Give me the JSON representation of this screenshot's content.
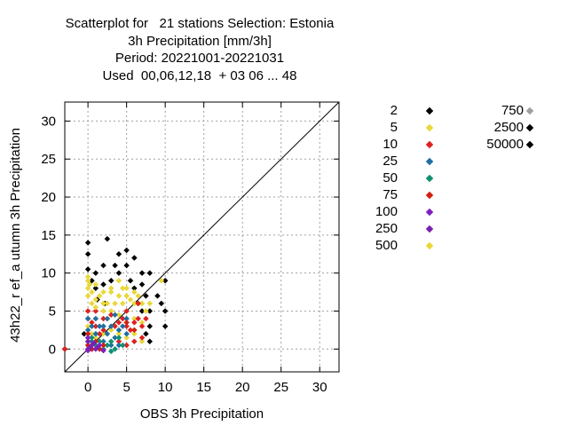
{
  "chart_data": {
    "type": "scatter",
    "title_lines": [
      "Scatterplot for   21 stations Selection: Estonia",
      "3h Precipitation [mm/3h]",
      "Period: 20221001-20221031",
      "Used  00,06,12,18  + 03 06 ... 48"
    ],
    "xlabel": "OBS 3h Precipitation",
    "ylabel": "43h22_r ef_a utumn 3h Precipitation",
    "xlim": [
      -3,
      32.5
    ],
    "ylim": [
      -3,
      32.5
    ],
    "xticks": [
      0,
      5,
      10,
      15,
      20,
      25,
      30
    ],
    "yticks": [
      0,
      5,
      10,
      15,
      20,
      25,
      30
    ],
    "tick_labels_x": [
      "0",
      "5",
      "10",
      "15",
      "20",
      "25",
      "30"
    ],
    "tick_labels_y": [
      "0",
      "5",
      "10",
      "15",
      "20",
      "25",
      "30"
    ],
    "grid": true,
    "diagonal": true,
    "legend_placement": "right",
    "series": [
      {
        "name": "2",
        "color": "#000000",
        "points": [
          [
            0,
            14
          ],
          [
            0,
            12.5
          ],
          [
            0,
            10.5
          ],
          [
            0.5,
            9
          ],
          [
            1,
            8
          ],
          [
            1,
            10
          ],
          [
            2,
            11
          ],
          [
            2,
            8.5
          ],
          [
            3,
            9
          ],
          [
            3.5,
            11
          ],
          [
            4,
            10
          ],
          [
            4,
            12.5
          ],
          [
            5,
            13
          ],
          [
            5,
            11
          ],
          [
            6,
            12
          ],
          [
            5.5,
            9
          ],
          [
            6,
            8
          ],
          [
            7,
            10
          ],
          [
            7,
            8.5
          ],
          [
            8,
            10
          ],
          [
            7.5,
            7
          ],
          [
            8,
            5
          ],
          [
            8,
            3
          ],
          [
            9,
            7
          ],
          [
            9.5,
            6
          ],
          [
            10,
            9
          ],
          [
            10,
            5
          ],
          [
            10,
            3
          ],
          [
            8,
            1
          ],
          [
            7.5,
            2
          ],
          [
            0,
            0
          ],
          [
            0.5,
            0
          ],
          [
            -0.5,
            2
          ],
          [
            1,
            2
          ],
          [
            -3,
            0
          ],
          [
            2.5,
            14.5
          ],
          [
            1.2,
            6.5
          ],
          [
            2.2,
            6
          ],
          [
            6.5,
            6
          ],
          [
            7,
            5
          ]
        ]
      },
      {
        "name": "5",
        "color": "#e8d83a",
        "points": [
          [
            0,
            9.5
          ],
          [
            0,
            8
          ],
          [
            0,
            7
          ],
          [
            0.5,
            6
          ],
          [
            1,
            8.5
          ],
          [
            1,
            6.5
          ],
          [
            1,
            4
          ],
          [
            1.5,
            7
          ],
          [
            2,
            5
          ],
          [
            2,
            7.5
          ],
          [
            2.5,
            6
          ],
          [
            2.5,
            4
          ],
          [
            3,
            7.5
          ],
          [
            3,
            5
          ],
          [
            3.5,
            6
          ],
          [
            4,
            7
          ],
          [
            4,
            4.5
          ],
          [
            4.5,
            8
          ],
          [
            4.5,
            6
          ],
          [
            5,
            5
          ],
          [
            5,
            7
          ],
          [
            5.5,
            6.5
          ],
          [
            6,
            6
          ],
          [
            6,
            4
          ],
          [
            6.5,
            7
          ],
          [
            7,
            6
          ],
          [
            7,
            3.5
          ],
          [
            7.5,
            5
          ],
          [
            8,
            6
          ],
          [
            9.5,
            9
          ],
          [
            0,
            3
          ],
          [
            0.5,
            2
          ],
          [
            1,
            1.5
          ],
          [
            2,
            2
          ],
          [
            3,
            2.5
          ],
          [
            4,
            2
          ],
          [
            5,
            1.5
          ],
          [
            6,
            2
          ],
          [
            7,
            1
          ]
        ]
      },
      {
        "name": "10",
        "color": "#e02020",
        "points": [
          [
            0,
            5
          ],
          [
            0,
            4
          ],
          [
            0.5,
            3.5
          ],
          [
            1,
            3
          ],
          [
            1,
            5
          ],
          [
            1.5,
            2
          ],
          [
            2,
            4
          ],
          [
            2,
            2.5
          ],
          [
            3,
            4.5
          ],
          [
            3.5,
            3
          ],
          [
            4,
            3.5
          ],
          [
            4.5,
            4
          ],
          [
            5,
            3
          ],
          [
            5,
            5
          ],
          [
            5.5,
            2.5
          ],
          [
            6,
            3.5
          ],
          [
            6.5,
            4
          ],
          [
            7,
            3
          ],
          [
            7,
            1.5
          ],
          [
            7.5,
            4
          ],
          [
            6,
            1
          ],
          [
            5,
            0.5
          ],
          [
            4,
            1
          ],
          [
            3,
            1
          ],
          [
            0,
            1.5
          ],
          [
            -3,
            0
          ],
          [
            0,
            0.5
          ],
          [
            6.5,
            6
          ]
        ]
      },
      {
        "name": "25",
        "color": "#1f6fa0",
        "points": [
          [
            0,
            4
          ],
          [
            0,
            2.5
          ],
          [
            0.5,
            3
          ],
          [
            1,
            2
          ],
          [
            1,
            4
          ],
          [
            1.5,
            3
          ],
          [
            2,
            1
          ],
          [
            2,
            3
          ],
          [
            2.5,
            2
          ],
          [
            2.5,
            4
          ],
          [
            3,
            0.5
          ],
          [
            3,
            3
          ],
          [
            3.5,
            1.5
          ],
          [
            3.5,
            4.5
          ],
          [
            4,
            2.5
          ],
          [
            4,
            0.5
          ],
          [
            4.5,
            3
          ],
          [
            5,
            2
          ],
          [
            5,
            4
          ],
          [
            0.5,
            1
          ]
        ]
      },
      {
        "name": "50",
        "color": "#109070",
        "points": [
          [
            0,
            1
          ],
          [
            0.5,
            1.5
          ],
          [
            1,
            0.5
          ],
          [
            1.5,
            1
          ],
          [
            2,
            0
          ],
          [
            2.5,
            0.5
          ],
          [
            3,
            1
          ],
          [
            3.5,
            0
          ],
          [
            4,
            1.5
          ],
          [
            4.5,
            0.5
          ],
          [
            3,
            -0.3
          ]
        ]
      },
      {
        "name": "75",
        "color": "#d02010",
        "points": [
          [
            0,
            2
          ],
          [
            0,
            0.5
          ],
          [
            0.5,
            0
          ],
          [
            1,
            1
          ],
          [
            1.5,
            0
          ],
          [
            2,
            0.5
          ],
          [
            5,
            3.5
          ],
          [
            6,
            2.5
          ]
        ]
      },
      {
        "name": "100",
        "color": "#8020c0",
        "points": [
          [
            0,
            1.5
          ],
          [
            0,
            0
          ],
          [
            0.5,
            0.5
          ],
          [
            1,
            0
          ],
          [
            1.5,
            0.5
          ],
          [
            2,
            -0.2
          ],
          [
            0,
            -0.2
          ]
        ]
      },
      {
        "name": "250",
        "color": "#7a20b0",
        "points": [
          [
            0,
            1
          ],
          [
            0.3,
            0.3
          ],
          [
            0.8,
            0.8
          ],
          [
            1.2,
            0.2
          ]
        ]
      },
      {
        "name": "500",
        "color": "#e8d83a",
        "points": [
          [
            0,
            9
          ],
          [
            0.2,
            8.5
          ],
          [
            0.5,
            7.5
          ],
          [
            1,
            5.5
          ],
          [
            2,
            6
          ],
          [
            3,
            8
          ],
          [
            4,
            9
          ],
          [
            5,
            8
          ],
          [
            6,
            7.5
          ]
        ]
      },
      {
        "name": "750",
        "color": "#a0a0a0",
        "points": []
      },
      {
        "name": "2500",
        "color": "#000000",
        "points": []
      },
      {
        "name": "50000",
        "color": "#000000",
        "points": []
      }
    ]
  }
}
